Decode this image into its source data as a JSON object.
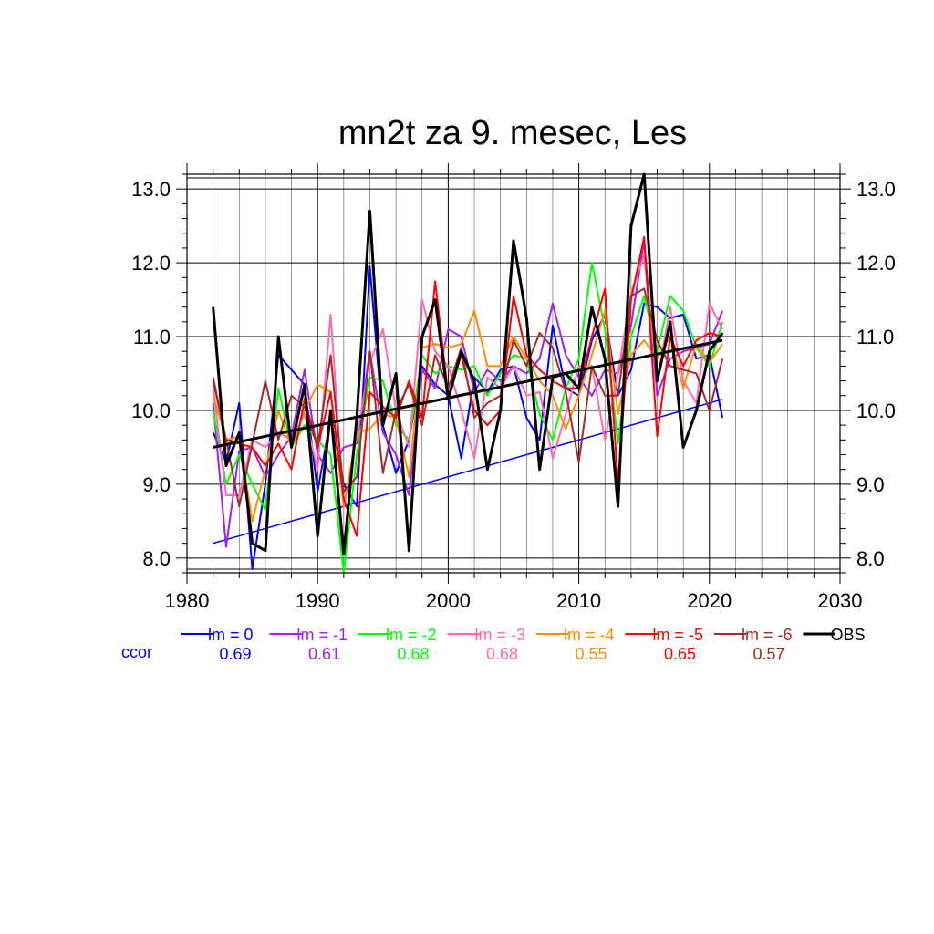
{
  "chart_data": {
    "type": "line",
    "title": "mn2t za 9. mesec, Les",
    "xlabel": "",
    "ylabel": "",
    "xlim": [
      1980,
      2030
    ],
    "ylim": [
      7.8,
      13.2
    ],
    "x_ticks": [
      "1980",
      "1990",
      "2000",
      "2010",
      "2020",
      "2030"
    ],
    "y_ticks": [
      "8.0",
      "9.0",
      "10.0",
      "11.0",
      "12.0",
      "13.0"
    ],
    "grid": true,
    "legend_position": "below",
    "x": [
      1982,
      1983,
      1984,
      1985,
      1986,
      1987,
      1988,
      1989,
      1990,
      1991,
      1992,
      1993,
      1994,
      1995,
      1996,
      1997,
      1998,
      1999,
      2000,
      2001,
      2002,
      2003,
      2004,
      2005,
      2006,
      2007,
      2008,
      2009,
      2010,
      2011,
      2012,
      2013,
      2014,
      2015,
      2016,
      2017,
      2018,
      2019,
      2020,
      2021
    ],
    "ccor_label": "ccor",
    "series": [
      {
        "name": "lm = 0",
        "color": "#0000ff",
        "ccor": "0.69",
        "values": [
          9.7,
          9.3,
          10.1,
          7.85,
          9.0,
          10.75,
          10.55,
          10.35,
          8.9,
          9.9,
          9.0,
          8.7,
          11.95,
          9.8,
          9.15,
          9.6,
          10.6,
          10.35,
          10.2,
          9.35,
          10.45,
          10.25,
          10.55,
          10.6,
          9.9,
          9.6,
          11.15,
          10.3,
          10.2,
          10.95,
          11.3,
          10.2,
          10.55,
          11.45,
          11.4,
          11.25,
          11.3,
          10.7,
          10.75,
          9.9
        ],
        "trend": [
          8.2,
          10.15
        ]
      },
      {
        "name": "lm = -1",
        "color": "#a020f0",
        "ccor": "0.61",
        "values": [
          10.1,
          8.15,
          9.45,
          9.5,
          9.1,
          9.4,
          9.65,
          10.55,
          9.4,
          9.15,
          9.5,
          9.55,
          10.8,
          9.7,
          9.4,
          8.85,
          10.55,
          10.3,
          11.1,
          11.0,
          10.25,
          10.55,
          10.4,
          10.6,
          10.5,
          10.7,
          11.45,
          10.75,
          10.45,
          10.2,
          10.55,
          10.5,
          11.15,
          12.3,
          10.2,
          10.7,
          10.8,
          10.85,
          10.9,
          11.35
        ]
      },
      {
        "name": "lm = -2",
        "color": "#00ff00",
        "ccor": "0.68",
        "values": [
          10.0,
          9.0,
          9.4,
          9.0,
          8.65,
          10.3,
          9.5,
          9.8,
          9.6,
          9.4,
          7.8,
          9.4,
          10.45,
          10.4,
          9.8,
          9.6,
          10.75,
          10.5,
          10.6,
          10.55,
          10.6,
          10.2,
          10.5,
          10.75,
          10.7,
          9.95,
          9.6,
          10.3,
          10.7,
          12.0,
          11.1,
          9.55,
          11.0,
          11.55,
          10.8,
          11.55,
          11.35,
          10.85,
          10.6,
          11.2
        ]
      },
      {
        "name": "lm = -3",
        "color": "#ff69b4",
        "ccor": "0.68",
        "values": [
          10.3,
          8.85,
          8.85,
          9.6,
          9.5,
          9.7,
          9.6,
          9.95,
          9.2,
          11.3,
          8.7,
          9.65,
          10.65,
          11.1,
          10.0,
          9.5,
          11.5,
          10.8,
          10.6,
          10.0,
          9.35,
          10.45,
          10.3,
          10.6,
          10.2,
          10.25,
          9.35,
          9.95,
          10.6,
          10.6,
          9.6,
          10.5,
          11.6,
          12.1,
          10.4,
          11.4,
          10.4,
          10.1,
          11.45,
          11.1
        ]
      },
      {
        "name": "lm = -4",
        "color": "#ff8c00",
        "ccor": "0.55",
        "values": [
          10.2,
          9.6,
          9.65,
          8.5,
          9.2,
          10.0,
          9.5,
          10.0,
          10.35,
          10.25,
          8.7,
          9.7,
          9.75,
          9.95,
          9.9,
          9.1,
          10.85,
          10.9,
          10.85,
          10.9,
          11.35,
          10.6,
          10.6,
          11.0,
          10.7,
          10.4,
          10.2,
          9.75,
          10.2,
          10.75,
          11.35,
          9.95,
          10.75,
          10.95,
          10.7,
          11.0,
          10.3,
          10.9,
          10.65,
          10.9
        ]
      },
      {
        "name": "lm = -5",
        "color": "#ff0000",
        "ccor": "0.65",
        "values": [
          10.4,
          9.6,
          9.55,
          9.5,
          9.25,
          9.55,
          9.2,
          10.15,
          9.5,
          10.25,
          8.8,
          8.3,
          10.25,
          10.05,
          9.9,
          10.4,
          9.9,
          11.75,
          10.2,
          10.75,
          10.0,
          9.8,
          10.0,
          11.55,
          10.75,
          10.55,
          10.4,
          10.3,
          10.3,
          11.0,
          11.65,
          9.0,
          11.5,
          12.35,
          9.65,
          11.0,
          10.6,
          10.95,
          11.05,
          11.0
        ]
      },
      {
        "name": "lm = -6",
        "color": "#a52a2a",
        "ccor": "0.57",
        "values": [
          10.45,
          9.6,
          8.7,
          9.55,
          10.4,
          9.6,
          10.2,
          10.05,
          9.5,
          10.75,
          8.9,
          9.1,
          10.8,
          9.15,
          10.0,
          10.35,
          9.8,
          10.75,
          10.3,
          10.85,
          9.9,
          10.1,
          10.2,
          10.95,
          10.6,
          11.05,
          10.85,
          10.25,
          9.3,
          10.6,
          10.2,
          10.2,
          11.55,
          11.65,
          10.95,
          10.6,
          10.55,
          10.5,
          10.0,
          10.7
        ]
      },
      {
        "name": "OBS",
        "color": "#000000",
        "ccor": "",
        "values": [
          11.4,
          9.25,
          9.7,
          8.2,
          8.1,
          11.0,
          9.5,
          10.35,
          8.3,
          10.0,
          8.05,
          9.9,
          12.7,
          9.8,
          10.5,
          8.1,
          11.0,
          11.5,
          10.15,
          10.8,
          10.4,
          9.2,
          10.0,
          12.3,
          11.25,
          9.2,
          10.45,
          10.5,
          10.3,
          11.4,
          10.7,
          8.7,
          12.5,
          13.2,
          10.4,
          11.2,
          9.5,
          10.0,
          10.8,
          11.05
        ],
        "trend": [
          9.5,
          10.95
        ]
      }
    ]
  }
}
